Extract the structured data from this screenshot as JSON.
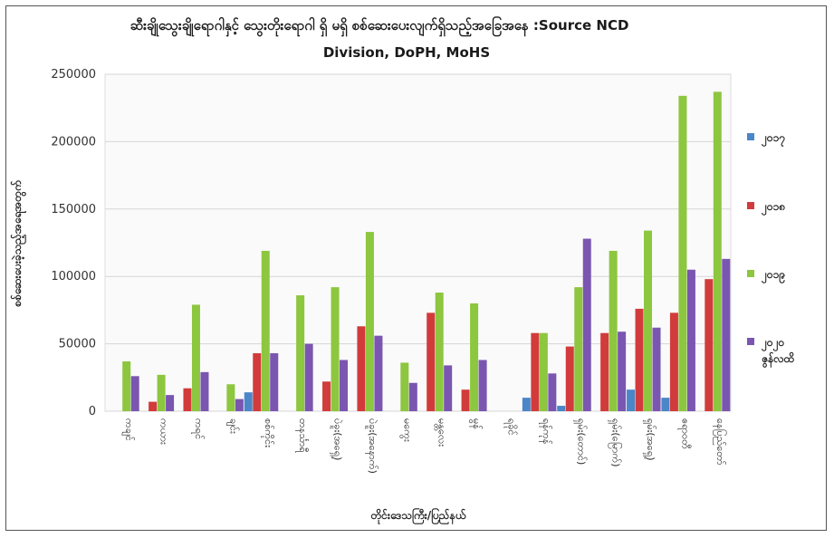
{
  "chart_data": {
    "type": "bar",
    "title": "ဆီးချိုသွေးချိုရောဂါနှင့် သွေးတိုးရောဂါ ရှိ မရှိ စစ်ဆေးပေးလျက်ရှိသည့်အခြေအနေ :Source NCD",
    "subtitle": "Division, DoPH, MoHS",
    "xlabel": "တိုင်းဒေသကြီး/ပြည်နယ်",
    "ylabel": "စစ်ဆေးပေးခဲ့သည့်အရေအတွက်",
    "ylim": [
      0,
      250000
    ],
    "yticks": [
      "0",
      "50000",
      "100000",
      "150000",
      "200000",
      "250000"
    ],
    "grid": true,
    "legend_position": "right",
    "categories": [
      "ကချင်",
      "ကယား",
      "ကရင်",
      "ချင်း",
      "စစ်ကိုင်း",
      "တနင်္သာရီ",
      "ပဲခူး(အရှေ့)",
      "ပဲခူး(အနောက်)",
      "မကွေး",
      "မန္တလေး",
      "မွန်",
      "ရခိုင်",
      "ရန်ကုန်",
      "ရှမ်း(တောင်)",
      "ရှမ်း(မြောက်)",
      "ရှမ်း(အရှေ့)",
      "ဧရာဝတီ",
      "နေပြည်တော်"
    ],
    "series": [
      {
        "name": "၂၀၁၇",
        "color": "#4a86c8",
        "values": [
          0,
          0,
          0,
          0,
          14000,
          0,
          0,
          0,
          0,
          0,
          0,
          0,
          10000,
          4000,
          0,
          16000,
          10000,
          0
        ]
      },
      {
        "name": "၂၀၁၈",
        "color": "#d23b3b",
        "values": [
          0,
          7000,
          17000,
          0,
          43000,
          0,
          22000,
          63000,
          0,
          73000,
          16000,
          0,
          58000,
          48000,
          58000,
          76000,
          73000,
          98000
        ]
      },
      {
        "name": "၂၀၁၉",
        "color": "#8dc63f",
        "values": [
          37000,
          27000,
          79000,
          20000,
          119000,
          86000,
          92000,
          133000,
          36000,
          88000,
          80000,
          0,
          58000,
          92000,
          119000,
          134000,
          234000,
          237000
        ]
      },
      {
        "name": "၂၀၂၀ ဇွန်လထိ",
        "color": "#7a56b0",
        "values": [
          26000,
          12000,
          29000,
          9000,
          43000,
          50000,
          38000,
          56000,
          21000,
          34000,
          38000,
          0,
          28000,
          128000,
          59000,
          62000,
          105000,
          113000
        ]
      }
    ]
  }
}
